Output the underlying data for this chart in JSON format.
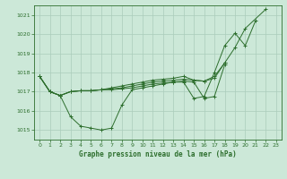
{
  "title": "Graphe pression niveau de la mer (hPa)",
  "bg_color": "#cce8d8",
  "grid_color": "#aaccbb",
  "line_color": "#2d6e2d",
  "x_ticks": [
    0,
    1,
    2,
    3,
    4,
    5,
    6,
    7,
    8,
    9,
    10,
    11,
    12,
    13,
    14,
    15,
    16,
    17,
    18,
    19,
    20,
    21,
    22,
    23
  ],
  "ylim": [
    1014.5,
    1021.5
  ],
  "xlim": [
    -0.5,
    23.5
  ],
  "yticks": [
    1015,
    1016,
    1017,
    1018,
    1019,
    1020,
    1021
  ],
  "series": [
    [
      1017.8,
      1017.0,
      1016.8,
      1015.7,
      1015.2,
      1015.1,
      1015.0,
      1015.1,
      1016.3,
      1017.1,
      1017.2,
      1017.3,
      1017.4,
      1017.5,
      1017.5,
      1016.65,
      1016.75,
      1018.0,
      1019.4,
      1020.05,
      1019.4,
      1020.7,
      null,
      null
    ],
    [
      1017.8,
      1017.0,
      1016.8,
      1017.0,
      1017.05,
      1017.05,
      1017.1,
      1017.1,
      1017.15,
      1017.2,
      1017.3,
      1017.4,
      1017.45,
      1017.5,
      1017.55,
      1017.5,
      1016.65,
      1016.75,
      1018.4,
      null,
      null,
      null,
      null,
      null
    ],
    [
      1017.8,
      1017.0,
      1016.8,
      1017.0,
      1017.05,
      1017.05,
      1017.1,
      1017.15,
      1017.2,
      1017.3,
      1017.4,
      1017.5,
      1017.55,
      1017.6,
      1017.65,
      1017.6,
      1017.55,
      1017.7,
      1018.5,
      null,
      null,
      null,
      null,
      null
    ],
    [
      1017.8,
      1017.0,
      1016.8,
      1017.0,
      1017.05,
      1017.05,
      1017.1,
      1017.2,
      1017.3,
      1017.4,
      1017.5,
      1017.6,
      1017.65,
      1017.7,
      1017.8,
      1017.6,
      1017.55,
      1017.8,
      1018.5,
      1019.3,
      1020.3,
      null,
      1021.3,
      null
    ]
  ]
}
